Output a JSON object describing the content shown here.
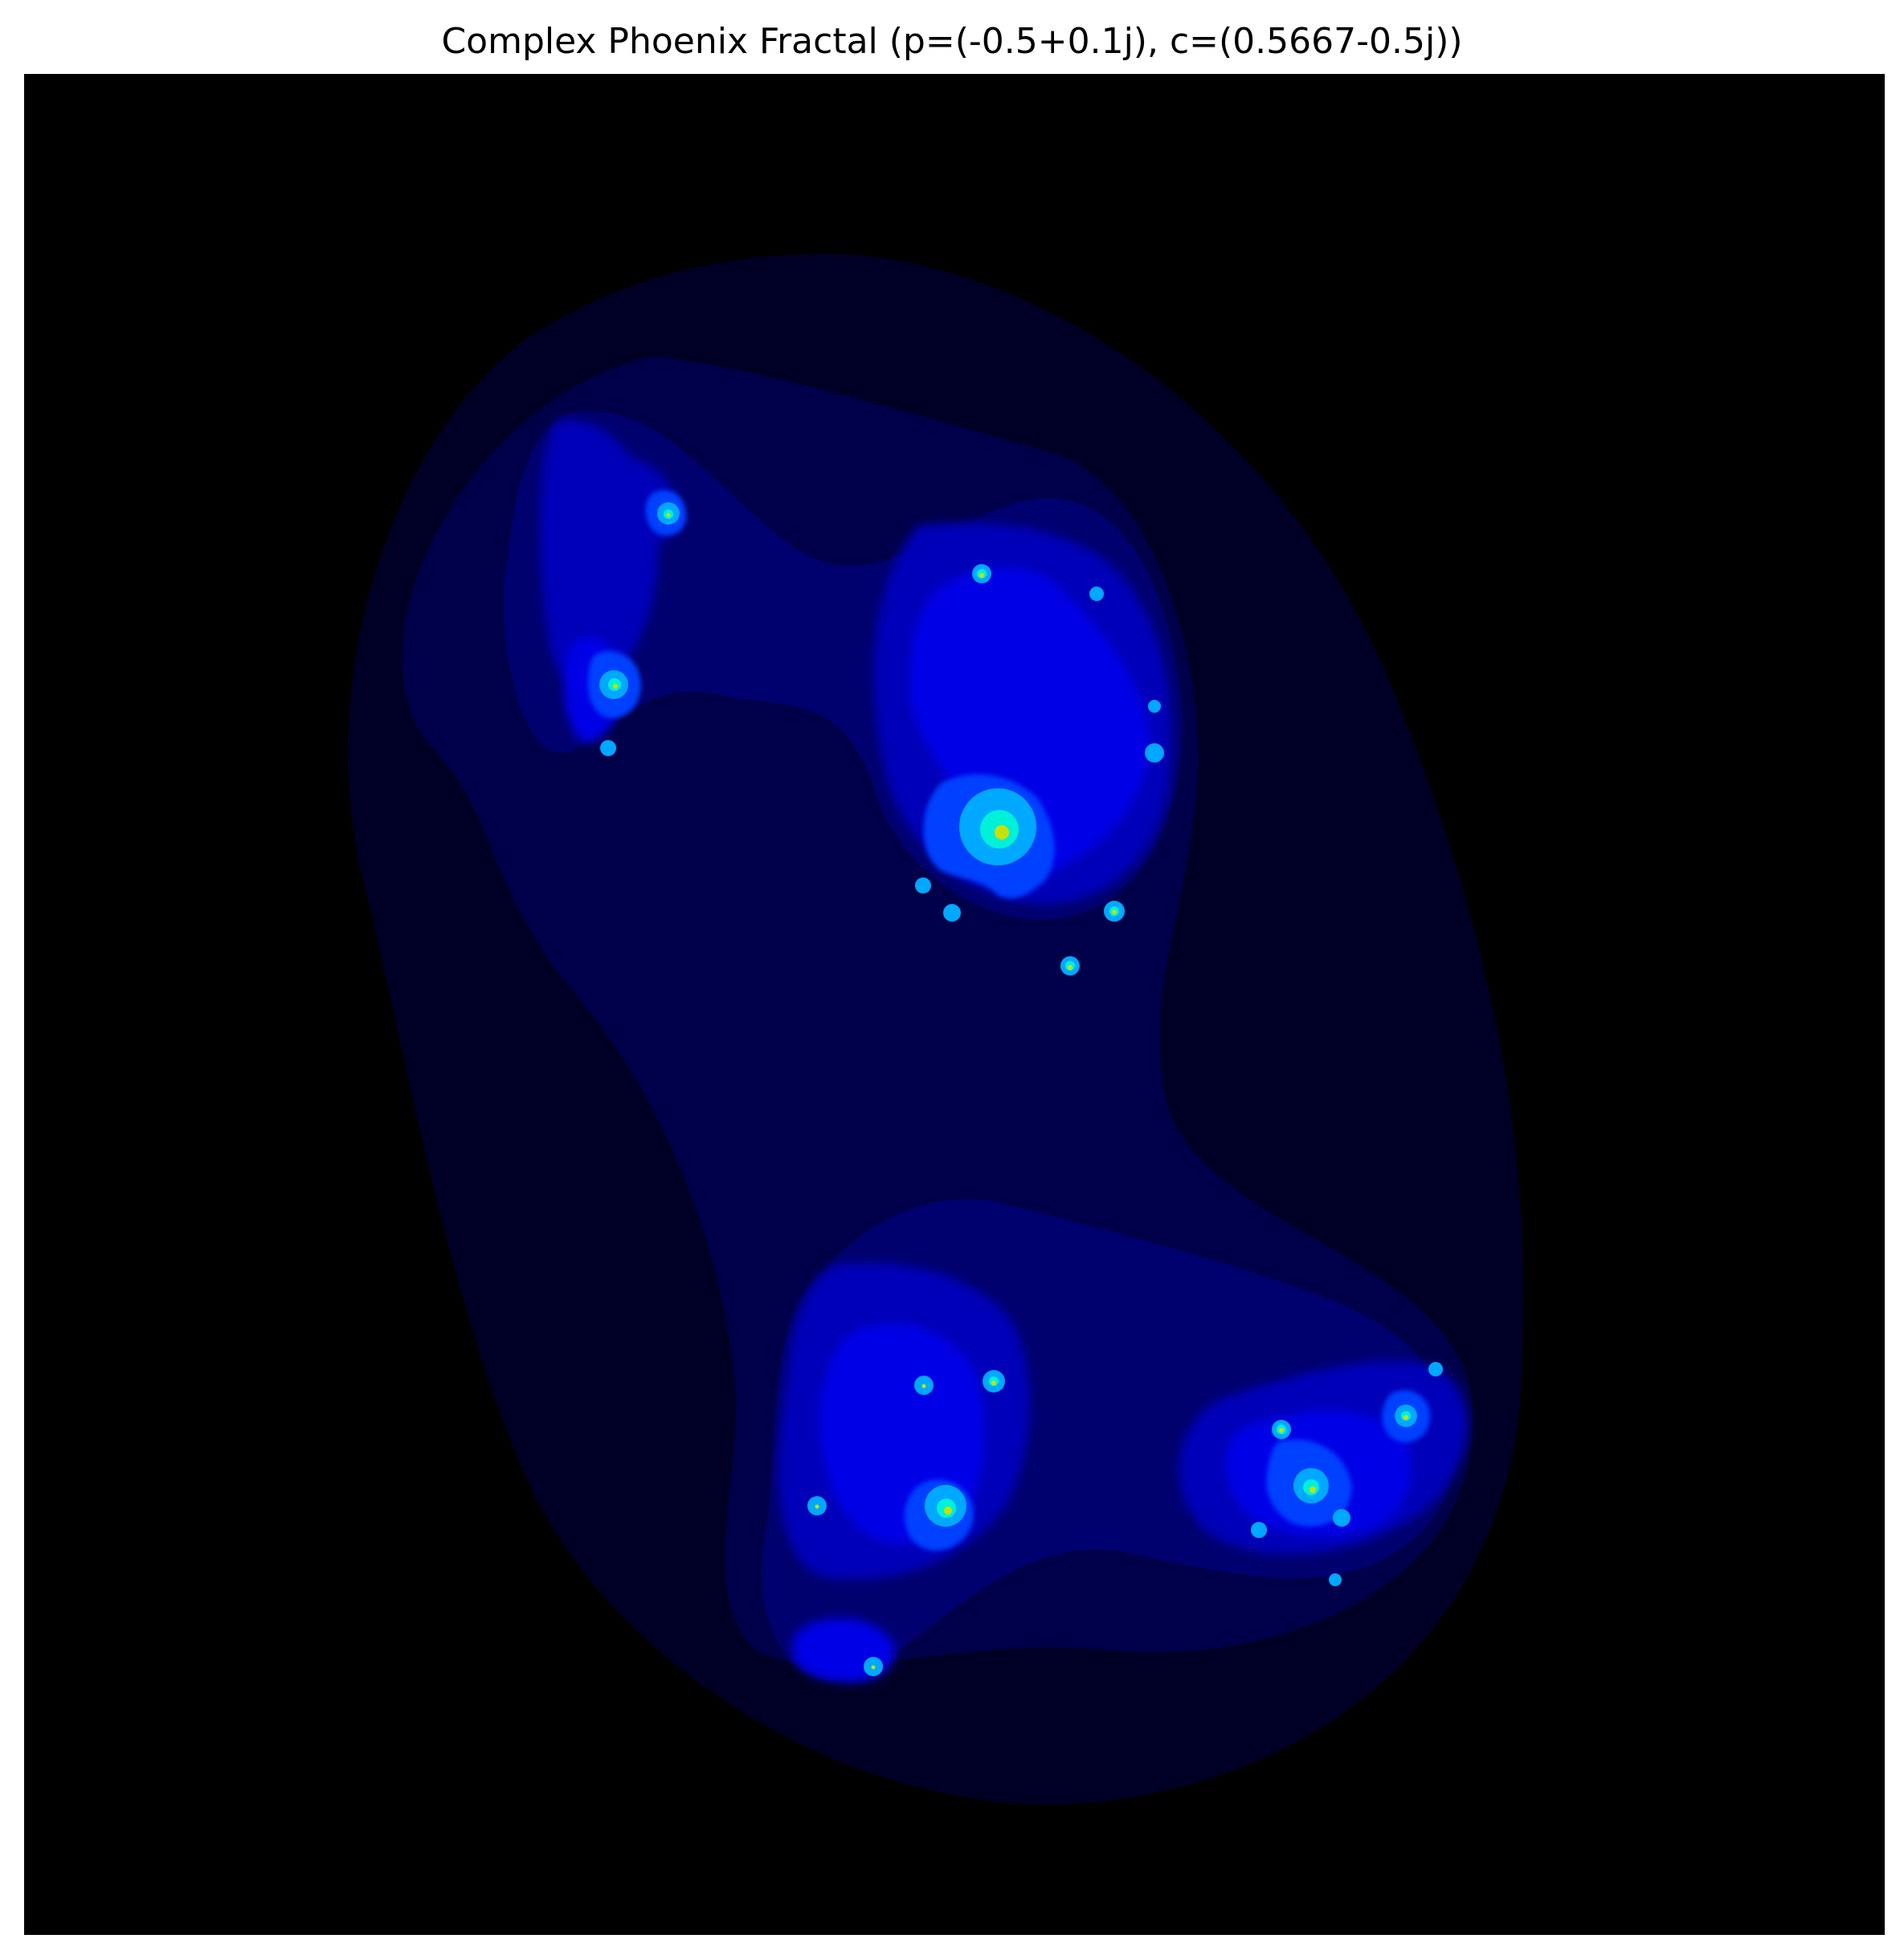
{
  "figure": {
    "title": "Complex Phoenix Fractal (p=(-0.5+0.1j), c=(0.5667-0.5j))"
  },
  "colors": {
    "background": "#000000",
    "level1": "#000026",
    "level2": "#00004a",
    "level3": "#00006e",
    "level4": "#0000b8",
    "level5": "#0000e6",
    "level6": "#0040ff",
    "level7": "#00a8ff",
    "level8": "#00f0d8",
    "core": "#c8e000"
  }
}
